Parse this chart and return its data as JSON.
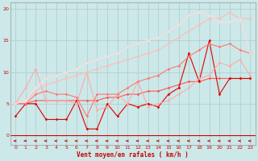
{
  "background_color": "#cce8e8",
  "grid_color": "#aacccc",
  "xlabel": "Vent moyen/en rafales ( km/h )",
  "xlim": [
    -0.5,
    23.5
  ],
  "ylim": [
    -1.5,
    21
  ],
  "yticks": [
    0,
    5,
    10,
    15,
    20
  ],
  "xticks": [
    0,
    1,
    2,
    3,
    4,
    5,
    6,
    7,
    8,
    9,
    10,
    11,
    12,
    13,
    14,
    15,
    16,
    17,
    18,
    19,
    20,
    21,
    22,
    23
  ],
  "series": [
    {
      "x": [
        0,
        1,
        2,
        3,
        4,
        5,
        6,
        7,
        8,
        9,
        10,
        11,
        12,
        13,
        14,
        15,
        16,
        17,
        18,
        19,
        20,
        21,
        22,
        23
      ],
      "y": [
        5.0,
        5.0,
        5.5,
        5.5,
        5.5,
        5.5,
        5.5,
        5.5,
        5.5,
        6.0,
        6.0,
        6.5,
        6.5,
        7.0,
        7.0,
        7.5,
        8.0,
        8.5,
        8.5,
        9.0,
        9.0,
        9.0,
        9.0,
        9.0
      ],
      "color": "#ff5555",
      "lw": 0.8,
      "marker": "D",
      "ms": 1.5
    },
    {
      "x": [
        0,
        1,
        2,
        3,
        4,
        5,
        6,
        7,
        8,
        9,
        10,
        11,
        12,
        13,
        14,
        15,
        16,
        17,
        18,
        19,
        20,
        21,
        22,
        23
      ],
      "y": [
        3.0,
        5.0,
        5.0,
        2.5,
        2.5,
        2.5,
        5.5,
        1.0,
        1.0,
        5.0,
        3.0,
        5.0,
        4.5,
        5.0,
        4.5,
        6.5,
        7.5,
        13.0,
        8.5,
        15.0,
        6.5,
        9.0,
        9.0,
        9.0
      ],
      "color": "#dd0000",
      "lw": 0.8,
      "marker": "D",
      "ms": 1.5
    },
    {
      "x": [
        0,
        1,
        2,
        3,
        4,
        5,
        6,
        7,
        8,
        9,
        10,
        11,
        12,
        13,
        14,
        15,
        16,
        17,
        18,
        19,
        20,
        21,
        22,
        23
      ],
      "y": [
        5.0,
        7.5,
        10.5,
        5.5,
        5.5,
        5.5,
        5.0,
        10.0,
        4.0,
        4.5,
        6.5,
        5.0,
        8.5,
        4.5,
        5.0,
        5.5,
        6.5,
        7.5,
        9.0,
        9.5,
        11.5,
        11.0,
        12.0,
        9.5
      ],
      "color": "#ffaaaa",
      "lw": 0.8,
      "marker": "D",
      "ms": 1.5
    },
    {
      "x": [
        0,
        1,
        2,
        3,
        4,
        5,
        6,
        7,
        8,
        9,
        10,
        11,
        12,
        13,
        14,
        15,
        16,
        17,
        18,
        19,
        20,
        21,
        22,
        23
      ],
      "y": [
        5.0,
        5.0,
        6.5,
        7.0,
        6.5,
        6.5,
        6.0,
        3.0,
        6.5,
        6.5,
        6.5,
        7.5,
        8.5,
        9.0,
        9.5,
        10.5,
        11.0,
        12.5,
        13.5,
        14.5,
        14.0,
        14.5,
        13.5,
        13.0
      ],
      "color": "#ff7777",
      "lw": 0.8,
      "marker": "D",
      "ms": 1.5
    },
    {
      "x": [
        0,
        1,
        2,
        3,
        4,
        5,
        6,
        7,
        8,
        9,
        10,
        11,
        12,
        13,
        14,
        15,
        16,
        17,
        18,
        19,
        20,
        21,
        22,
        23
      ],
      "y": [
        5.0,
        5.5,
        7.0,
        8.0,
        8.5,
        9.0,
        9.5,
        10.0,
        10.5,
        11.0,
        11.5,
        12.0,
        12.5,
        13.0,
        13.5,
        14.5,
        15.5,
        16.5,
        17.5,
        18.5,
        18.5,
        19.5,
        18.5,
        18.5
      ],
      "color": "#ffbbbb",
      "lw": 0.8,
      "marker": "D",
      "ms": 1.5
    },
    {
      "x": [
        0,
        1,
        2,
        3,
        4,
        5,
        6,
        7,
        8,
        9,
        10,
        11,
        12,
        13,
        14,
        15,
        16,
        17,
        18,
        19,
        20,
        21,
        22,
        23
      ],
      "y": [
        5.0,
        5.5,
        7.5,
        9.0,
        9.5,
        10.0,
        10.5,
        11.5,
        12.0,
        12.5,
        13.0,
        14.0,
        14.5,
        15.0,
        15.5,
        16.5,
        17.5,
        19.0,
        19.5,
        19.0,
        18.0,
        18.0,
        18.5,
        13.0
      ],
      "color": "#ffdddd",
      "lw": 0.8,
      "marker": "D",
      "ms": 1.5
    }
  ],
  "arrow_color": "#cc0000",
  "axis_label_color": "#cc0000",
  "tick_color": "#cc0000",
  "tick_fontsize": 4.5,
  "xlabel_fontsize": 5.5
}
